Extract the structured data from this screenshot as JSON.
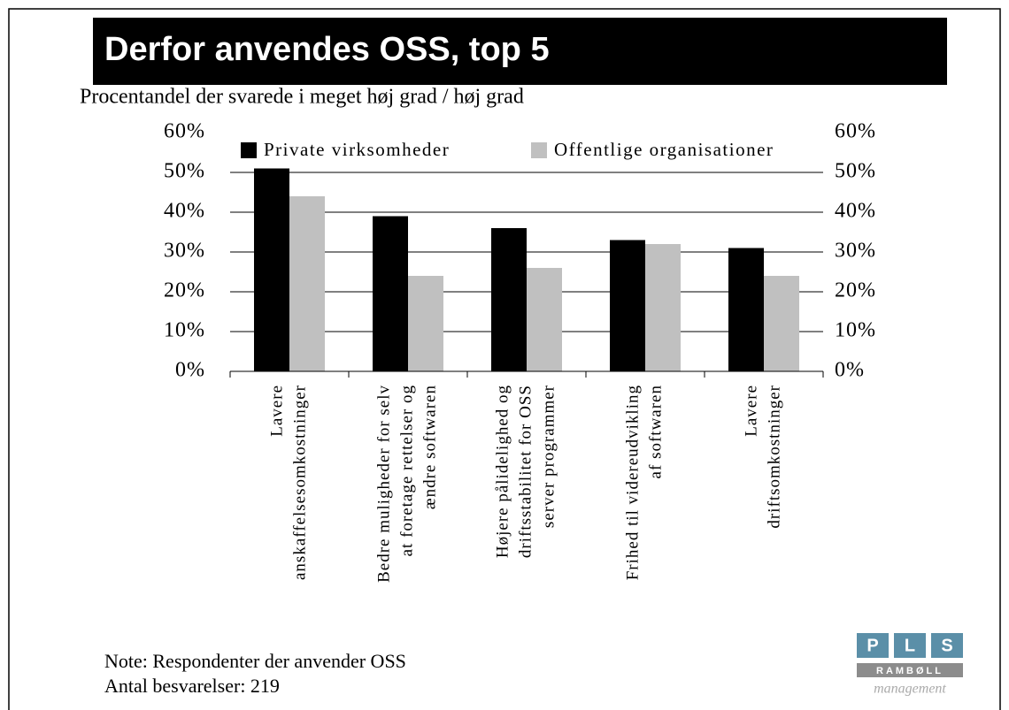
{
  "chart_data": {
    "type": "bar",
    "title": "Derfor anvendes OSS, top 5",
    "subtitle": "Procentandel der svarede i meget høj grad / høj grad",
    "categories": [
      [
        "Lavere",
        "anskaffelsesomkostninger"
      ],
      [
        "Bedre muligheder for selv",
        "at foretage rettelser og",
        "ændre softwaren"
      ],
      [
        "Højere pålidelighed og",
        "driftsstabilitet for OSS",
        "server programmer"
      ],
      [
        "Frihed til videreudvikling",
        "af softwaren"
      ],
      [
        "Lavere",
        "driftsomkostninger"
      ]
    ],
    "series": [
      {
        "name": "Private virksomheder",
        "color": "#000000",
        "values": [
          51,
          39,
          36,
          33,
          31
        ]
      },
      {
        "name": "Offentlige organisationer",
        "color": "#c0c0c0",
        "values": [
          44,
          24,
          26,
          32,
          24
        ]
      }
    ],
    "ylim": [
      0,
      60
    ],
    "yticks": [
      {
        "value": 0,
        "label": "0%"
      },
      {
        "value": 10,
        "label": "10%"
      },
      {
        "value": 20,
        "label": "20%"
      },
      {
        "value": 30,
        "label": "30%"
      },
      {
        "value": 40,
        "label": "40%"
      },
      {
        "value": 50,
        "label": "50%"
      },
      {
        "value": 60,
        "label": "60%"
      }
    ],
    "y2lim": [
      0,
      60
    ],
    "y2ticks": [
      {
        "value": 0,
        "label": "0%"
      },
      {
        "value": 10,
        "label": "10%"
      },
      {
        "value": 20,
        "label": "20%"
      },
      {
        "value": 30,
        "label": "30%"
      },
      {
        "value": 40,
        "label": "40%"
      },
      {
        "value": 50,
        "label": "50%"
      },
      {
        "value": 60,
        "label": "60%"
      }
    ],
    "grid": true,
    "legend": "top",
    "notes": [
      "Note: Respondenter der anvender OSS",
      "Antal besvarelser: 219"
    ],
    "logo": {
      "letters": [
        "P",
        "L",
        "S"
      ],
      "company": "RAMBØLL",
      "sub": "management"
    }
  }
}
